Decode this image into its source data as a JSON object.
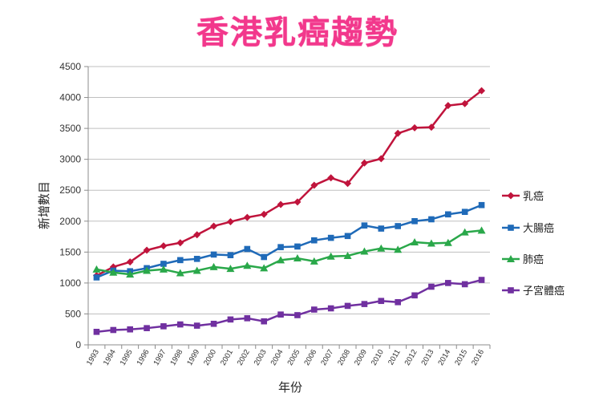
{
  "chart_data": {
    "type": "line",
    "title": "香港乳癌趨勢",
    "xlabel": "年份",
    "ylabel": "新增數目",
    "ylim": [
      0,
      4500
    ],
    "yticks": [
      0,
      500,
      1000,
      1500,
      2000,
      2500,
      3000,
      3500,
      4000,
      4500
    ],
    "grid": true,
    "legend_position": "right",
    "x": [
      "1993",
      "1994",
      "1995",
      "1996",
      "1997",
      "1998",
      "1999",
      "2000",
      "2001",
      "2002",
      "2003",
      "2004",
      "2005",
      "2006",
      "2007",
      "2008",
      "2009",
      "2010",
      "2011",
      "2012",
      "2013",
      "2014",
      "2015",
      "2016"
    ],
    "series": [
      {
        "name": "乳癌",
        "color": "#c0143c",
        "marker": "diamond",
        "values": [
          1120,
          1260,
          1340,
          1530,
          1600,
          1650,
          1780,
          1920,
          1990,
          2060,
          2110,
          2270,
          2310,
          2580,
          2700,
          2610,
          2940,
          3010,
          3420,
          3510,
          3520,
          3870,
          3900,
          4110
        ]
      },
      {
        "name": "大腸癌",
        "color": "#1f6ab8",
        "marker": "square",
        "values": [
          1090,
          1200,
          1190,
          1240,
          1310,
          1370,
          1390,
          1460,
          1450,
          1550,
          1420,
          1580,
          1590,
          1690,
          1730,
          1760,
          1930,
          1880,
          1920,
          2000,
          2030,
          2110,
          2150,
          2260
        ]
      },
      {
        "name": "肺癌",
        "color": "#2aa84a",
        "marker": "triangle",
        "values": [
          1220,
          1170,
          1140,
          1200,
          1220,
          1160,
          1200,
          1260,
          1230,
          1280,
          1240,
          1370,
          1400,
          1350,
          1430,
          1440,
          1510,
          1560,
          1540,
          1660,
          1640,
          1650,
          1820,
          1850
        ]
      },
      {
        "name": "子宮體癌",
        "color": "#7030a0",
        "marker": "square",
        "values": [
          210,
          240,
          250,
          270,
          300,
          330,
          310,
          340,
          410,
          430,
          380,
          490,
          480,
          570,
          590,
          630,
          660,
          710,
          690,
          800,
          940,
          1000,
          980,
          1050
        ]
      }
    ]
  }
}
